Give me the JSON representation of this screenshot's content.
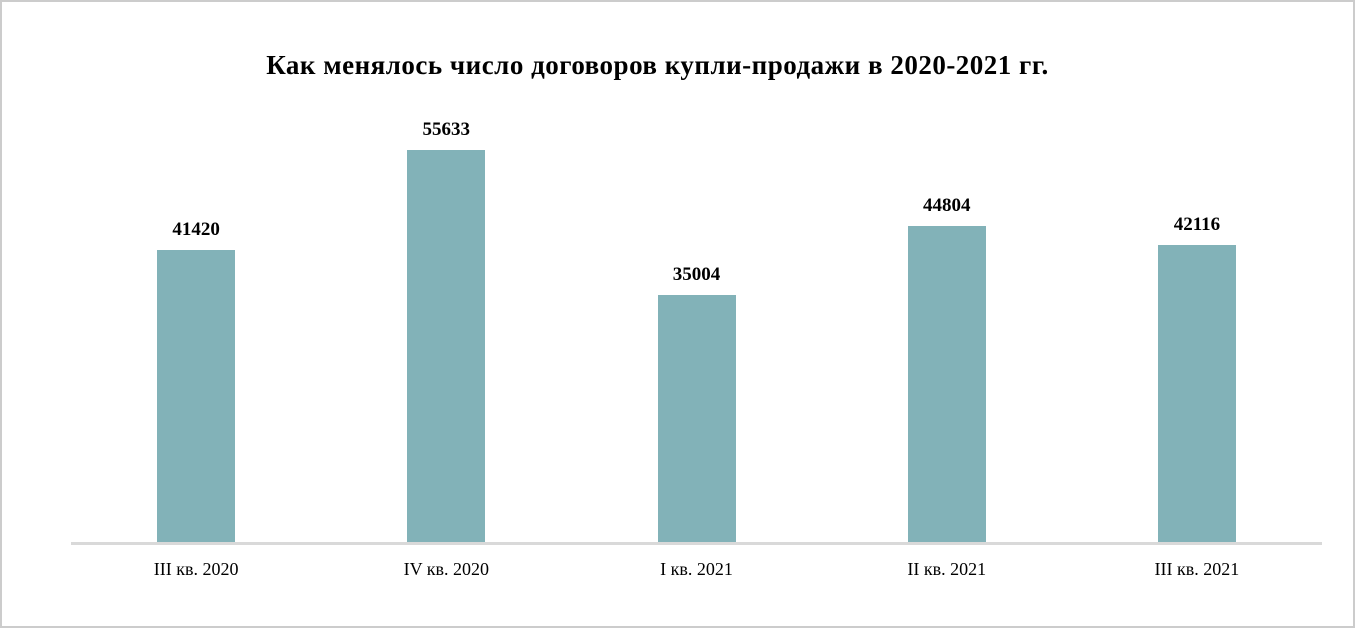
{
  "window": {
    "background_color": "#ffffff",
    "border_color": "#cccccc"
  },
  "chart_data": {
    "type": "bar",
    "title": "Как менялось число договоров купли-продажи в 2020-2021 гг.",
    "categories": [
      "III кв. 2020",
      "IV кв. 2020",
      "I кв. 2021",
      "II кв. 2021",
      "III кв. 2021"
    ],
    "values": [
      41420,
      55633,
      35004,
      44804,
      42116
    ],
    "xlabel": "",
    "ylabel": "",
    "ylim": [
      0,
      60000
    ],
    "grid": false,
    "legend": false,
    "data_labels": true,
    "bar_color": "#82b2b8",
    "axis_line_color": "#d9d9d9",
    "text_color": "#000000"
  }
}
